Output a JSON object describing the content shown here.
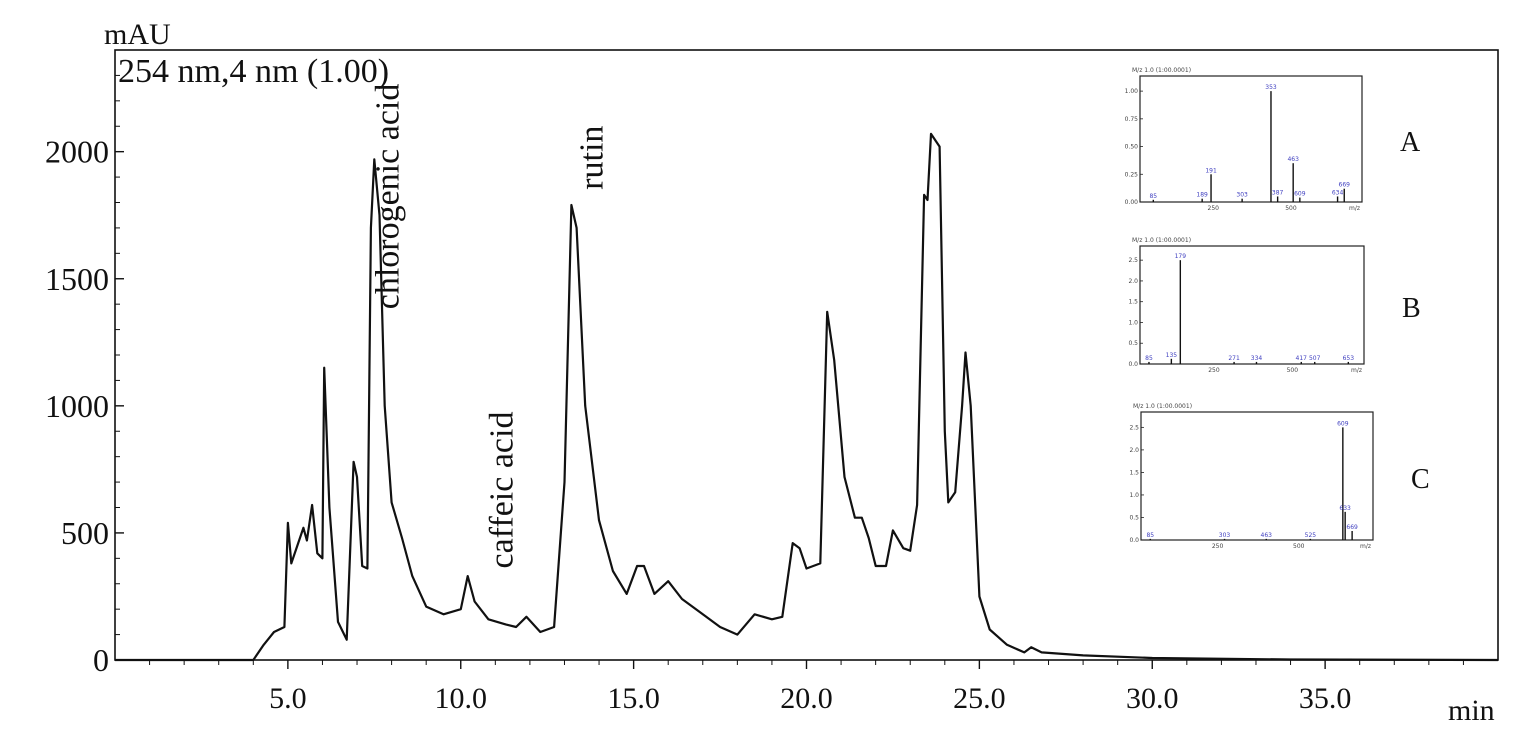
{
  "chart_data": {
    "type": "line",
    "ylabel": "mAU",
    "xlabel": "min",
    "subtitle": "254 nm,4 nm (1.00)",
    "xlim": [
      0,
      40
    ],
    "ylim": [
      0,
      2400
    ],
    "x_ticks": [
      "5.0",
      "10.0",
      "15.0",
      "20.0",
      "25.0",
      "30.0",
      "35.0"
    ],
    "x_tick_values": [
      5,
      10,
      15,
      20,
      25,
      30,
      35
    ],
    "y_ticks": [
      "0",
      "500",
      "1000",
      "1500",
      "2000"
    ],
    "y_tick_values": [
      0,
      500,
      1000,
      1500,
      2000
    ],
    "grid": false,
    "series": [
      {
        "color": "#111111",
        "points": [
          [
            0.0,
            0
          ],
          [
            4.0,
            0
          ],
          [
            4.3,
            60
          ],
          [
            4.6,
            110
          ],
          [
            4.9,
            130
          ],
          [
            5.0,
            540
          ],
          [
            5.1,
            380
          ],
          [
            5.3,
            460
          ],
          [
            5.45,
            520
          ],
          [
            5.55,
            470
          ],
          [
            5.7,
            610
          ],
          [
            5.85,
            420
          ],
          [
            6.0,
            400
          ],
          [
            6.05,
            1150
          ],
          [
            6.2,
            600
          ],
          [
            6.45,
            150
          ],
          [
            6.7,
            80
          ],
          [
            6.9,
            780
          ],
          [
            7.0,
            720
          ],
          [
            7.15,
            370
          ],
          [
            7.3,
            360
          ],
          [
            7.4,
            1700
          ],
          [
            7.5,
            1970
          ],
          [
            7.65,
            1750
          ],
          [
            7.8,
            1000
          ],
          [
            8.0,
            620
          ],
          [
            8.3,
            480
          ],
          [
            8.6,
            330
          ],
          [
            9.0,
            210
          ],
          [
            9.5,
            180
          ],
          [
            10.0,
            200
          ],
          [
            10.2,
            330
          ],
          [
            10.4,
            230
          ],
          [
            10.8,
            160
          ],
          [
            11.3,
            140
          ],
          [
            11.6,
            130
          ],
          [
            11.9,
            170
          ],
          [
            12.3,
            110
          ],
          [
            12.7,
            130
          ],
          [
            13.0,
            700
          ],
          [
            13.2,
            1790
          ],
          [
            13.35,
            1700
          ],
          [
            13.6,
            1000
          ],
          [
            14.0,
            550
          ],
          [
            14.4,
            350
          ],
          [
            14.8,
            260
          ],
          [
            15.1,
            370
          ],
          [
            15.3,
            370
          ],
          [
            15.6,
            260
          ],
          [
            16.0,
            310
          ],
          [
            16.4,
            240
          ],
          [
            17.0,
            180
          ],
          [
            17.5,
            130
          ],
          [
            18.0,
            100
          ],
          [
            18.5,
            180
          ],
          [
            19.0,
            160
          ],
          [
            19.3,
            170
          ],
          [
            19.6,
            460
          ],
          [
            19.8,
            440
          ],
          [
            20.0,
            360
          ],
          [
            20.4,
            380
          ],
          [
            20.6,
            1370
          ],
          [
            20.8,
            1180
          ],
          [
            21.1,
            720
          ],
          [
            21.4,
            560
          ],
          [
            21.6,
            560
          ],
          [
            21.8,
            480
          ],
          [
            22.0,
            370
          ],
          [
            22.3,
            370
          ],
          [
            22.5,
            510
          ],
          [
            22.8,
            440
          ],
          [
            23.0,
            430
          ],
          [
            23.2,
            610
          ],
          [
            23.4,
            1830
          ],
          [
            23.5,
            1810
          ],
          [
            23.6,
            2070
          ],
          [
            23.85,
            2020
          ],
          [
            24.0,
            900
          ],
          [
            24.1,
            620
          ],
          [
            24.3,
            660
          ],
          [
            24.5,
            1000
          ],
          [
            24.6,
            1210
          ],
          [
            24.75,
            1000
          ],
          [
            25.0,
            250
          ],
          [
            25.3,
            120
          ],
          [
            25.8,
            60
          ],
          [
            26.3,
            30
          ],
          [
            26.5,
            50
          ],
          [
            26.8,
            30
          ],
          [
            28.0,
            18
          ],
          [
            30.0,
            8
          ],
          [
            34.0,
            2
          ],
          [
            40.0,
            0
          ]
        ]
      }
    ],
    "annotations": [
      {
        "text": "chlorogenic acid",
        "x": 8.2,
        "y": 1380
      },
      {
        "text": "caffeic acid",
        "x": 11.5,
        "y": 360
      },
      {
        "text": "rutin",
        "x": 14.1,
        "y": 1850
      }
    ],
    "insets": [
      {
        "panel": "A",
        "header": "M/z 1.0 (1:00.0001)",
        "y_ticks": [
          "0.00",
          "0.25",
          "0.50",
          "0.75",
          "1.00"
        ],
        "x_ticks": [
          "250",
          "500"
        ],
        "x_end": "m/z",
        "peak_labels": [
          "85",
          "189",
          "191",
          "303",
          "353",
          "387",
          "463",
          "609",
          "634",
          "669"
        ],
        "peaks": [
          {
            "rel_x": 0.06,
            "rel_h": 0.02
          },
          {
            "rel_x": 0.28,
            "rel_h": 0.03
          },
          {
            "rel_x": 0.32,
            "rel_h": 0.25
          },
          {
            "rel_x": 0.46,
            "rel_h": 0.03
          },
          {
            "rel_x": 0.59,
            "rel_h": 1.0
          },
          {
            "rel_x": 0.62,
            "rel_h": 0.05
          },
          {
            "rel_x": 0.69,
            "rel_h": 0.35
          },
          {
            "rel_x": 0.72,
            "rel_h": 0.04
          },
          {
            "rel_x": 0.89,
            "rel_h": 0.05
          },
          {
            "rel_x": 0.92,
            "rel_h": 0.12
          }
        ]
      },
      {
        "panel": "B",
        "header": "M/z 1.0 (1:00.0001)",
        "y_ticks": [
          "0.0",
          "0.5",
          "1.0",
          "1.5",
          "2.0",
          "2.5"
        ],
        "x_ticks": [
          "250",
          "500"
        ],
        "x_end": "m/z",
        "peak_labels": [
          "85",
          "135",
          "179",
          "271",
          "334",
          "417",
          "507",
          "653"
        ],
        "peaks": [
          {
            "rel_x": 0.04,
            "rel_h": 0.02
          },
          {
            "rel_x": 0.14,
            "rel_h": 0.05
          },
          {
            "rel_x": 0.18,
            "rel_h": 1.0
          },
          {
            "rel_x": 0.42,
            "rel_h": 0.02
          },
          {
            "rel_x": 0.52,
            "rel_h": 0.02
          },
          {
            "rel_x": 0.72,
            "rel_h": 0.02
          },
          {
            "rel_x": 0.78,
            "rel_h": 0.02
          },
          {
            "rel_x": 0.93,
            "rel_h": 0.02
          }
        ]
      },
      {
        "panel": "C",
        "header": "M/z 1.0 (1:00.0001)",
        "y_ticks": [
          "0.0",
          "0.5",
          "1.0",
          "1.5",
          "2.0",
          "2.5"
        ],
        "x_ticks": [
          "250",
          "500"
        ],
        "x_end": "m/z",
        "peak_labels": [
          "85",
          "303",
          "463",
          "525",
          "609",
          "633",
          "669"
        ],
        "peaks": [
          {
            "rel_x": 0.04,
            "rel_h": 0.01
          },
          {
            "rel_x": 0.36,
            "rel_h": 0.01
          },
          {
            "rel_x": 0.54,
            "rel_h": 0.01
          },
          {
            "rel_x": 0.73,
            "rel_h": 0.01
          },
          {
            "rel_x": 0.87,
            "rel_h": 1.0
          },
          {
            "rel_x": 0.88,
            "rel_h": 0.25
          },
          {
            "rel_x": 0.91,
            "rel_h": 0.08
          }
        ]
      }
    ]
  }
}
